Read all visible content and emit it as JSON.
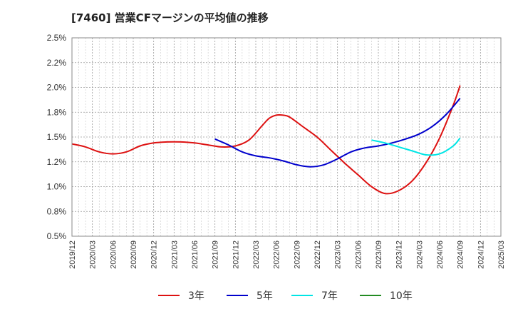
{
  "chart_data": {
    "type": "line",
    "title": "[7460]  営業CFマージンの平均値の推移",
    "xlabel": "",
    "ylabel": "",
    "y_axis": {
      "min": 0.005,
      "max": 0.025,
      "ticks": [
        0.005,
        0.0075,
        0.01,
        0.0125,
        0.015,
        0.0175,
        0.02,
        0.0225,
        0.025
      ],
      "tick_labels": [
        "0.5%",
        "0.8%",
        "1.0%",
        "1.2%",
        "1.5%",
        "1.8%",
        "2.0%",
        "2.2%",
        "2.5%"
      ]
    },
    "x_axis": {
      "start": "2019-12",
      "end": "2025-03",
      "tick_labels": [
        "2019/12",
        "2020/03",
        "2020/06",
        "2020/09",
        "2020/12",
        "2021/03",
        "2021/06",
        "2021/09",
        "2021/12",
        "2022/03",
        "2022/06",
        "2022/09",
        "2022/12",
        "2023/03",
        "2023/06",
        "2023/09",
        "2023/12",
        "2024/03",
        "2024/06",
        "2024/09",
        "2024/12",
        "2025/03"
      ]
    },
    "grid": true,
    "legend_position": "bottom",
    "series": [
      {
        "name": "3年",
        "color": "#dd1111",
        "points": [
          [
            "2019-12",
            0.0143
          ],
          [
            "2020-02",
            0.014
          ],
          [
            "2020-04",
            0.0135
          ],
          [
            "2020-06",
            0.0133
          ],
          [
            "2020-08",
            0.0135
          ],
          [
            "2020-10",
            0.0141
          ],
          [
            "2020-12",
            0.0144
          ],
          [
            "2021-02",
            0.0145
          ],
          [
            "2021-04",
            0.0145
          ],
          [
            "2021-06",
            0.0144
          ],
          [
            "2021-08",
            0.0142
          ],
          [
            "2021-10",
            0.014
          ],
          [
            "2021-12",
            0.0141
          ],
          [
            "2022-02",
            0.0147
          ],
          [
            "2022-04",
            0.0162
          ],
          [
            "2022-05",
            0.0169
          ],
          [
            "2022-06",
            0.0172
          ],
          [
            "2022-07",
            0.0172
          ],
          [
            "2022-08",
            0.017
          ],
          [
            "2022-10",
            0.016
          ],
          [
            "2022-12",
            0.015
          ],
          [
            "2023-02",
            0.0137
          ],
          [
            "2023-04",
            0.0124
          ],
          [
            "2023-06",
            0.0112
          ],
          [
            "2023-08",
            0.01
          ],
          [
            "2023-10",
            0.0093
          ],
          [
            "2023-12",
            0.0096
          ],
          [
            "2024-02",
            0.0106
          ],
          [
            "2024-04",
            0.0124
          ],
          [
            "2024-06",
            0.0149
          ],
          [
            "2024-08",
            0.0182
          ],
          [
            "2024-09",
            0.0202
          ]
        ]
      },
      {
        "name": "5年",
        "color": "#0000cc",
        "points": [
          [
            "2021-09",
            0.0148
          ],
          [
            "2021-11",
            0.0142
          ],
          [
            "2022-01",
            0.0135
          ],
          [
            "2022-03",
            0.0131
          ],
          [
            "2022-05",
            0.0129
          ],
          [
            "2022-07",
            0.0126
          ],
          [
            "2022-09",
            0.0122
          ],
          [
            "2022-11",
            0.012
          ],
          [
            "2023-01",
            0.0122
          ],
          [
            "2023-03",
            0.0128
          ],
          [
            "2023-05",
            0.0135
          ],
          [
            "2023-07",
            0.0139
          ],
          [
            "2023-09",
            0.0141
          ],
          [
            "2023-11",
            0.0144
          ],
          [
            "2024-01",
            0.0148
          ],
          [
            "2024-03",
            0.0153
          ],
          [
            "2024-05",
            0.0161
          ],
          [
            "2024-07",
            0.0173
          ],
          [
            "2024-09",
            0.0189
          ]
        ]
      },
      {
        "name": "7年",
        "color": "#00e5e5",
        "points": [
          [
            "2023-08",
            0.0147
          ],
          [
            "2023-10",
            0.0144
          ],
          [
            "2023-12",
            0.014
          ],
          [
            "2024-02",
            0.0136
          ],
          [
            "2024-04",
            0.0132
          ],
          [
            "2024-06",
            0.0133
          ],
          [
            "2024-08",
            0.0141
          ],
          [
            "2024-09",
            0.0149
          ]
        ]
      },
      {
        "name": "10年",
        "color": "#228B22",
        "points": []
      }
    ]
  }
}
